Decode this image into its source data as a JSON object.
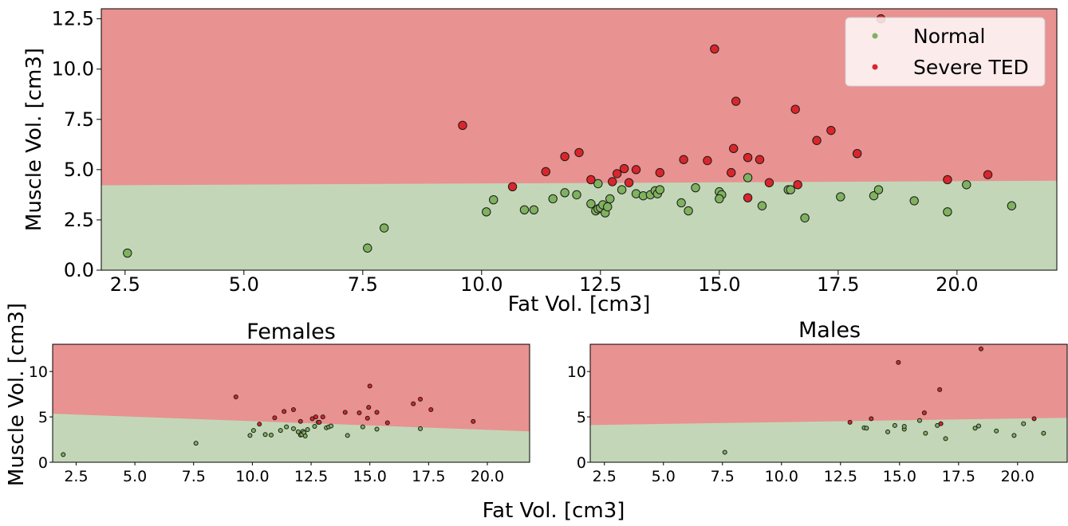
{
  "colors": {
    "severe_region": "#e89291",
    "normal_region": "#c3d7b8",
    "normal_point": "#7fb25f",
    "severe_point": "#d9262b",
    "point_edge": "#1a1a1a"
  },
  "chart_data": [
    {
      "type": "scatter",
      "panel": "main",
      "title": "",
      "xlabel": "Fat Vol. [cm3]",
      "ylabel": "Muscle Vol. [cm3]",
      "xlim": [
        2.0,
        22.1
      ],
      "ylim": [
        0,
        13
      ],
      "x_ticks": [
        2.5,
        5.0,
        7.5,
        10.0,
        12.5,
        15.0,
        17.5,
        20.0
      ],
      "x_tick_labels": [
        "2.5",
        "5.0",
        "7.5",
        "10.0",
        "12.5",
        "15.0",
        "17.5",
        "20.0"
      ],
      "y_ticks": [
        0.0,
        2.5,
        5.0,
        7.5,
        10.0,
        12.5
      ],
      "y_tick_labels": [
        "0.0",
        "2.5",
        "5.0",
        "7.5",
        "10.0",
        "12.5"
      ],
      "grid": false,
      "legend": {
        "placement": "top-right",
        "entries": [
          "Normal",
          "Severe TED"
        ]
      },
      "decision_boundary": [
        [
          2.0,
          4.22
        ],
        [
          22.1,
          4.45
        ]
      ],
      "series": [
        {
          "name": "Normal",
          "points": [
            [
              2.55,
              0.85
            ],
            [
              7.6,
              1.1
            ],
            [
              7.95,
              2.1
            ],
            [
              10.1,
              2.9
            ],
            [
              10.25,
              3.5
            ],
            [
              10.9,
              3.0
            ],
            [
              11.1,
              3.0
            ],
            [
              11.5,
              3.55
            ],
            [
              11.75,
              3.85
            ],
            [
              12.0,
              3.75
            ],
            [
              12.3,
              3.3
            ],
            [
              12.4,
              2.95
            ],
            [
              12.45,
              3.05
            ],
            [
              12.5,
              3.1
            ],
            [
              12.55,
              3.25
            ],
            [
              12.6,
              2.85
            ],
            [
              12.65,
              3.15
            ],
            [
              12.7,
              3.55
            ],
            [
              12.45,
              4.3
            ],
            [
              12.95,
              4.0
            ],
            [
              13.25,
              3.8
            ],
            [
              13.4,
              3.7
            ],
            [
              13.55,
              3.75
            ],
            [
              13.65,
              3.95
            ],
            [
              13.7,
              3.8
            ],
            [
              13.75,
              4.0
            ],
            [
              14.2,
              3.35
            ],
            [
              14.35,
              2.95
            ],
            [
              14.5,
              4.1
            ],
            [
              15.0,
              3.9
            ],
            [
              15.05,
              3.75
            ],
            [
              15.0,
              3.55
            ],
            [
              15.6,
              4.6
            ],
            [
              15.9,
              3.2
            ],
            [
              16.45,
              4.0
            ],
            [
              16.5,
              4.0
            ],
            [
              16.8,
              2.6
            ],
            [
              17.55,
              3.65
            ],
            [
              18.25,
              3.7
            ],
            [
              18.35,
              4.0
            ],
            [
              19.1,
              3.45
            ],
            [
              19.8,
              2.9
            ],
            [
              20.2,
              4.25
            ],
            [
              21.15,
              3.2
            ]
          ]
        },
        {
          "name": "Severe TED",
          "points": [
            [
              9.6,
              7.2
            ],
            [
              10.65,
              4.15
            ],
            [
              11.35,
              4.9
            ],
            [
              11.75,
              5.65
            ],
            [
              12.05,
              5.85
            ],
            [
              12.3,
              4.5
            ],
            [
              12.75,
              4.4
            ],
            [
              12.85,
              4.8
            ],
            [
              13.0,
              5.05
            ],
            [
              13.1,
              4.35
            ],
            [
              13.25,
              5.0
            ],
            [
              13.75,
              4.85
            ],
            [
              14.25,
              5.5
            ],
            [
              14.75,
              5.45
            ],
            [
              14.9,
              11.0
            ],
            [
              15.25,
              4.85
            ],
            [
              15.3,
              6.05
            ],
            [
              15.35,
              8.4
            ],
            [
              15.6,
              5.6
            ],
            [
              15.6,
              3.6
            ],
            [
              15.85,
              5.5
            ],
            [
              16.05,
              4.35
            ],
            [
              16.6,
              8.0
            ],
            [
              16.65,
              4.25
            ],
            [
              17.05,
              6.45
            ],
            [
              17.35,
              6.95
            ],
            [
              17.9,
              5.8
            ],
            [
              18.4,
              12.5
            ],
            [
              19.8,
              4.5
            ],
            [
              20.65,
              4.75
            ]
          ]
        }
      ]
    },
    {
      "type": "scatter",
      "panel": "females",
      "title": "Females",
      "xlabel": "",
      "ylabel": "",
      "xlim": [
        1.5,
        21.8
      ],
      "ylim": [
        0,
        13
      ],
      "x_ticks": [
        2.5,
        5.0,
        7.5,
        10.0,
        12.5,
        15.0,
        17.5,
        20.0
      ],
      "x_tick_labels": [
        "2.5",
        "5.0",
        "7.5",
        "10.0",
        "12.5",
        "15.0",
        "17.5",
        "20.0"
      ],
      "y_ticks": [
        0,
        5,
        10
      ],
      "y_tick_labels": [
        "0",
        "5",
        "10"
      ],
      "grid": false,
      "decision_boundary": [
        [
          1.5,
          5.35
        ],
        [
          21.8,
          3.4
        ]
      ],
      "series": [
        {
          "name": "Normal",
          "points": [
            [
              1.95,
              0.85
            ],
            [
              7.6,
              2.1
            ],
            [
              9.9,
              2.95
            ],
            [
              10.05,
              3.5
            ],
            [
              10.55,
              3.05
            ],
            [
              10.8,
              3.0
            ],
            [
              11.2,
              3.5
            ],
            [
              11.45,
              3.9
            ],
            [
              11.75,
              3.7
            ],
            [
              11.95,
              3.35
            ],
            [
              12.05,
              3.0
            ],
            [
              12.1,
              3.05
            ],
            [
              12.15,
              3.4
            ],
            [
              12.2,
              3.25
            ],
            [
              12.25,
              2.9
            ],
            [
              12.35,
              3.6
            ],
            [
              12.65,
              3.95
            ],
            [
              12.8,
              4.4
            ],
            [
              13.15,
              3.8
            ],
            [
              13.25,
              3.9
            ],
            [
              13.35,
              4.0
            ],
            [
              14.05,
              2.95
            ],
            [
              14.7,
              3.9
            ],
            [
              15.3,
              3.65
            ],
            [
              17.15,
              3.7
            ]
          ]
        },
        {
          "name": "Severe TED",
          "points": [
            [
              9.3,
              7.2
            ],
            [
              10.3,
              4.2
            ],
            [
              10.95,
              4.9
            ],
            [
              11.35,
              5.6
            ],
            [
              11.75,
              5.8
            ],
            [
              12.05,
              4.5
            ],
            [
              12.55,
              4.8
            ],
            [
              12.7,
              5.0
            ],
            [
              12.85,
              4.4
            ],
            [
              13.0,
              5.0
            ],
            [
              13.95,
              5.5
            ],
            [
              14.55,
              5.45
            ],
            [
              14.9,
              4.85
            ],
            [
              14.95,
              6.05
            ],
            [
              15.0,
              8.4
            ],
            [
              15.3,
              5.5
            ],
            [
              15.75,
              4.35
            ],
            [
              16.85,
              6.45
            ],
            [
              17.15,
              6.95
            ],
            [
              17.6,
              5.8
            ],
            [
              19.4,
              4.5
            ]
          ]
        }
      ]
    },
    {
      "type": "scatter",
      "panel": "males",
      "title": "Males",
      "xlabel": "",
      "ylabel": "",
      "xlim": [
        1.9,
        22.1
      ],
      "ylim": [
        0,
        13
      ],
      "x_ticks": [
        2.5,
        5.0,
        7.5,
        10.0,
        12.5,
        15.0,
        17.5,
        20.0
      ],
      "x_tick_labels": [
        "2.5",
        "5.0",
        "7.5",
        "10.0",
        "12.5",
        "15.0",
        "17.5",
        "20.0"
      ],
      "y_ticks": [
        0,
        5,
        10
      ],
      "y_tick_labels": [
        "0",
        "5",
        "10"
      ],
      "grid": false,
      "decision_boundary": [
        [
          1.9,
          4.1
        ],
        [
          22.1,
          4.9
        ]
      ],
      "series": [
        {
          "name": "Normal",
          "points": [
            [
              7.6,
              1.1
            ],
            [
              13.5,
              3.8
            ],
            [
              13.6,
              3.75
            ],
            [
              14.5,
              3.35
            ],
            [
              14.8,
              4.05
            ],
            [
              15.2,
              3.65
            ],
            [
              15.2,
              3.95
            ],
            [
              15.85,
              4.6
            ],
            [
              16.1,
              3.2
            ],
            [
              16.6,
              4.05
            ],
            [
              16.95,
              2.6
            ],
            [
              18.2,
              3.75
            ],
            [
              18.35,
              4.0
            ],
            [
              19.1,
              3.45
            ],
            [
              19.85,
              2.95
            ],
            [
              20.25,
              4.25
            ],
            [
              21.1,
              3.2
            ]
          ]
        },
        {
          "name": "Severe TED",
          "points": [
            [
              12.9,
              4.4
            ],
            [
              13.8,
              4.8
            ],
            [
              14.95,
              11.0
            ],
            [
              16.05,
              5.45
            ],
            [
              16.75,
              4.25
            ],
            [
              16.7,
              8.0
            ],
            [
              18.45,
              12.5
            ],
            [
              20.7,
              4.8
            ]
          ]
        }
      ]
    }
  ],
  "figure": {
    "shared_xlabel": "Fat Vol. [cm3]",
    "shared_ylabel": "Muscle Vol. [cm3]"
  }
}
